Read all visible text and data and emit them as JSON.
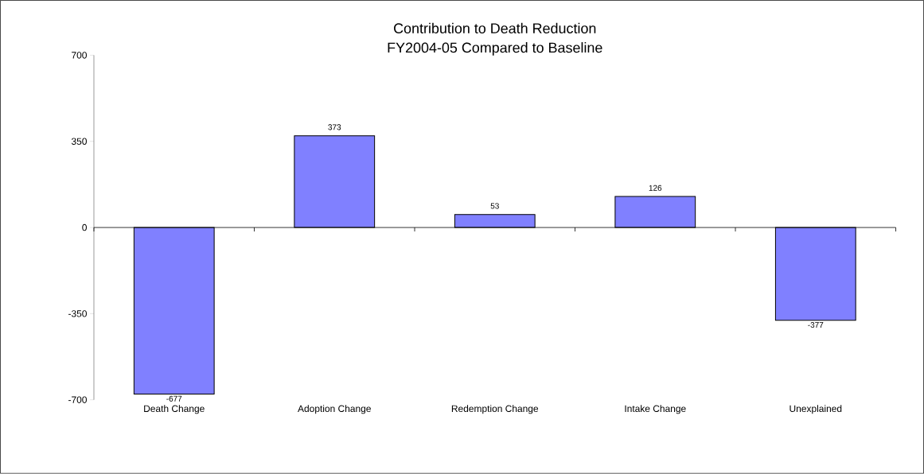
{
  "chart_data": {
    "type": "bar",
    "title": "Contribution to Death Reduction",
    "subtitle": "FY2004-05 Compared to Baseline",
    "categories": [
      "Death Change",
      "Adoption Change",
      "Redemption Change",
      "Intake Change",
      "Unexplained"
    ],
    "values": [
      -677,
      373,
      53,
      126,
      -377
    ],
    "color": "#8080ff",
    "ylim": [
      -700,
      700
    ],
    "yticks": [
      -700,
      -350,
      0,
      350,
      700
    ],
    "data_labels": true
  }
}
